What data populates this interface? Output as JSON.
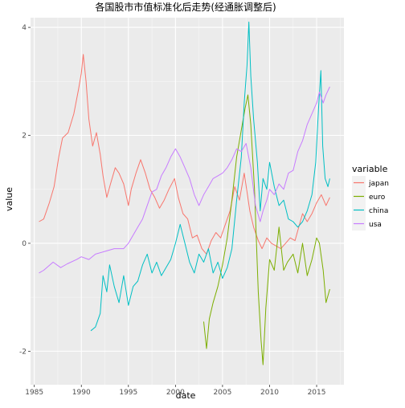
{
  "chart_data": {
    "type": "line",
    "title": "各国股市市值标准化后走势(经通胀调整后)",
    "xlabel": "date",
    "ylabel": "value",
    "xlim": [
      1984.6,
      2017.9
    ],
    "ylim": [
      -2.62,
      4.18
    ],
    "x_ticks": [
      1985,
      1990,
      1995,
      2000,
      2005,
      2010,
      2015
    ],
    "y_ticks": [
      -2,
      0,
      2,
      4
    ],
    "x_tick_labels": [
      "1985",
      "1990",
      "1995",
      "2000",
      "2005",
      "2010",
      "2015"
    ],
    "y_tick_labels": [
      "-2",
      "0",
      "2",
      "4"
    ],
    "grid": true,
    "legend": {
      "title": "variable",
      "position": "right"
    },
    "series": [
      {
        "name": "japan",
        "color": "#F8766D",
        "x": [
          1985.5,
          1986,
          1986.6,
          1987.1,
          1987.6,
          1988,
          1988.6,
          1989.2,
          1989.7,
          1990.0,
          1990.2,
          1990.5,
          1990.8,
          1991.2,
          1991.6,
          1992.0,
          1992.3,
          1992.7,
          1993.1,
          1993.6,
          1994.0,
          1994.5,
          1995.0,
          1995.3,
          1995.8,
          1996.3,
          1996.8,
          1997.3,
          1997.8,
          1998.3,
          1998.8,
          1999.3,
          1999.9,
          2000.3,
          2000.8,
          2001.3,
          2001.8,
          2002.3,
          2002.8,
          2003.3,
          2003.8,
          2004.3,
          2004.8,
          2005.3,
          2005.8,
          2006.3,
          2006.8,
          2007.3,
          2007.6,
          2007.9,
          2008.3,
          2008.8,
          2009.2,
          2009.7,
          2010.2,
          2010.7,
          2011.2,
          2011.7,
          2012.2,
          2012.7,
          2013.1,
          2013.5,
          2014.0,
          2014.5,
          2015.0,
          2015.5,
          2016.0,
          2016.4
        ],
        "values": [
          0.4,
          0.45,
          0.75,
          1.05,
          1.6,
          1.95,
          2.05,
          2.4,
          2.85,
          3.15,
          3.5,
          3.0,
          2.3,
          1.8,
          2.05,
          1.65,
          1.25,
          0.85,
          1.1,
          1.4,
          1.3,
          1.1,
          0.7,
          1.0,
          1.3,
          1.55,
          1.3,
          1.0,
          0.85,
          0.65,
          0.8,
          1.0,
          1.2,
          0.85,
          0.55,
          0.45,
          0.1,
          0.15,
          -0.1,
          -0.2,
          0.05,
          0.2,
          0.1,
          0.35,
          0.6,
          1.05,
          0.8,
          1.3,
          0.95,
          0.6,
          0.3,
          0.05,
          -0.1,
          0.1,
          0.0,
          -0.05,
          -0.1,
          0.0,
          0.1,
          0.05,
          0.3,
          0.55,
          0.4,
          0.55,
          0.75,
          0.9,
          0.7,
          0.85
        ]
      },
      {
        "name": "euro",
        "color": "#7CAE00",
        "x": [
          2003.0,
          2003.3,
          2003.6,
          2004.0,
          2004.5,
          2005.0,
          2005.5,
          2006.0,
          2006.5,
          2007.0,
          2007.4,
          2007.7,
          2008.0,
          2008.4,
          2008.8,
          2009.1,
          2009.3,
          2009.6,
          2010.0,
          2010.5,
          2011.0,
          2011.5,
          2011.9,
          2012.5,
          2013.0,
          2013.5,
          2014.0,
          2014.5,
          2015.0,
          2015.3,
          2015.7,
          2016.0,
          2016.4
        ],
        "values": [
          -1.45,
          -1.95,
          -1.4,
          -1.1,
          -0.8,
          -0.4,
          0.1,
          0.8,
          1.6,
          2.1,
          2.5,
          2.75,
          2.2,
          1.0,
          -0.9,
          -1.8,
          -2.25,
          -1.2,
          -0.3,
          -0.5,
          0.3,
          -0.5,
          -0.35,
          -0.2,
          -0.55,
          0.0,
          -0.6,
          -0.3,
          0.1,
          0.0,
          -0.5,
          -1.1,
          -0.85
        ]
      },
      {
        "name": "china",
        "color": "#00BFC4",
        "x": [
          1991.0,
          1991.5,
          1992.0,
          1992.3,
          1992.7,
          1993.0,
          1993.5,
          1994.0,
          1994.5,
          1995.0,
          1995.5,
          1996.0,
          1996.5,
          1997.0,
          1997.5,
          1998.0,
          1998.5,
          1999.0,
          1999.5,
          2000.0,
          2000.5,
          2001.0,
          2001.5,
          2002.0,
          2002.5,
          2003.0,
          2003.5,
          2004.0,
          2004.5,
          2005.0,
          2005.5,
          2006.0,
          2006.5,
          2007.0,
          2007.3,
          2007.6,
          2007.8,
          2008.0,
          2008.3,
          2008.7,
          2009.0,
          2009.3,
          2009.7,
          2010.0,
          2010.5,
          2011.0,
          2011.5,
          2012.0,
          2012.5,
          2013.0,
          2013.5,
          2014.0,
          2014.5,
          2014.9,
          2015.2,
          2015.45,
          2015.65,
          2015.9,
          2016.2,
          2016.4
        ],
        "values": [
          -1.62,
          -1.55,
          -1.3,
          -0.6,
          -0.9,
          -0.4,
          -0.8,
          -1.1,
          -0.6,
          -1.15,
          -0.8,
          -0.7,
          -0.4,
          -0.2,
          -0.55,
          -0.35,
          -0.6,
          -0.45,
          -0.3,
          0.0,
          0.35,
          0.0,
          -0.35,
          -0.55,
          -0.2,
          -0.35,
          -0.1,
          -0.55,
          -0.35,
          -0.65,
          -0.45,
          -0.1,
          0.8,
          1.6,
          2.6,
          3.3,
          4.1,
          3.1,
          2.3,
          1.5,
          0.6,
          1.2,
          1.0,
          1.5,
          1.05,
          0.7,
          0.8,
          0.45,
          0.4,
          0.3,
          0.4,
          0.6,
          0.9,
          1.5,
          2.5,
          3.2,
          1.8,
          1.2,
          1.05,
          1.2
        ]
      },
      {
        "name": "usa",
        "color": "#C77CFF",
        "x": [
          1985.5,
          1986,
          1987,
          1987.8,
          1988.5,
          1989.5,
          1990,
          1990.8,
          1991.5,
          1992.5,
          1993.5,
          1994.5,
          1995,
          1995.5,
          1996,
          1996.5,
          1997,
          1997.5,
          1998,
          1998.5,
          1999,
          1999.5,
          2000,
          2000.5,
          2001,
          2001.5,
          2002,
          2002.5,
          2003,
          2003.5,
          2004,
          2004.5,
          2005,
          2005.5,
          2006,
          2006.5,
          2007,
          2007.5,
          2008,
          2008.5,
          2009,
          2009.3,
          2009.7,
          2010,
          2010.5,
          2011,
          2011.5,
          2012,
          2012.5,
          2013,
          2013.5,
          2014,
          2014.5,
          2015,
          2015.3,
          2015.7,
          2016,
          2016.4
        ],
        "values": [
          -0.55,
          -0.5,
          -0.35,
          -0.45,
          -0.38,
          -0.3,
          -0.25,
          -0.3,
          -0.2,
          -0.15,
          -0.1,
          -0.1,
          0.0,
          0.15,
          0.3,
          0.45,
          0.7,
          0.95,
          1.0,
          1.25,
          1.4,
          1.6,
          1.75,
          1.6,
          1.4,
          1.2,
          0.9,
          0.7,
          0.9,
          1.05,
          1.2,
          1.25,
          1.3,
          1.4,
          1.55,
          1.75,
          1.7,
          1.85,
          1.4,
          0.7,
          0.4,
          0.6,
          0.8,
          1.0,
          0.9,
          1.1,
          1.0,
          1.3,
          1.35,
          1.7,
          1.9,
          2.2,
          2.4,
          2.6,
          2.8,
          2.6,
          2.75,
          2.9
        ]
      }
    ]
  }
}
